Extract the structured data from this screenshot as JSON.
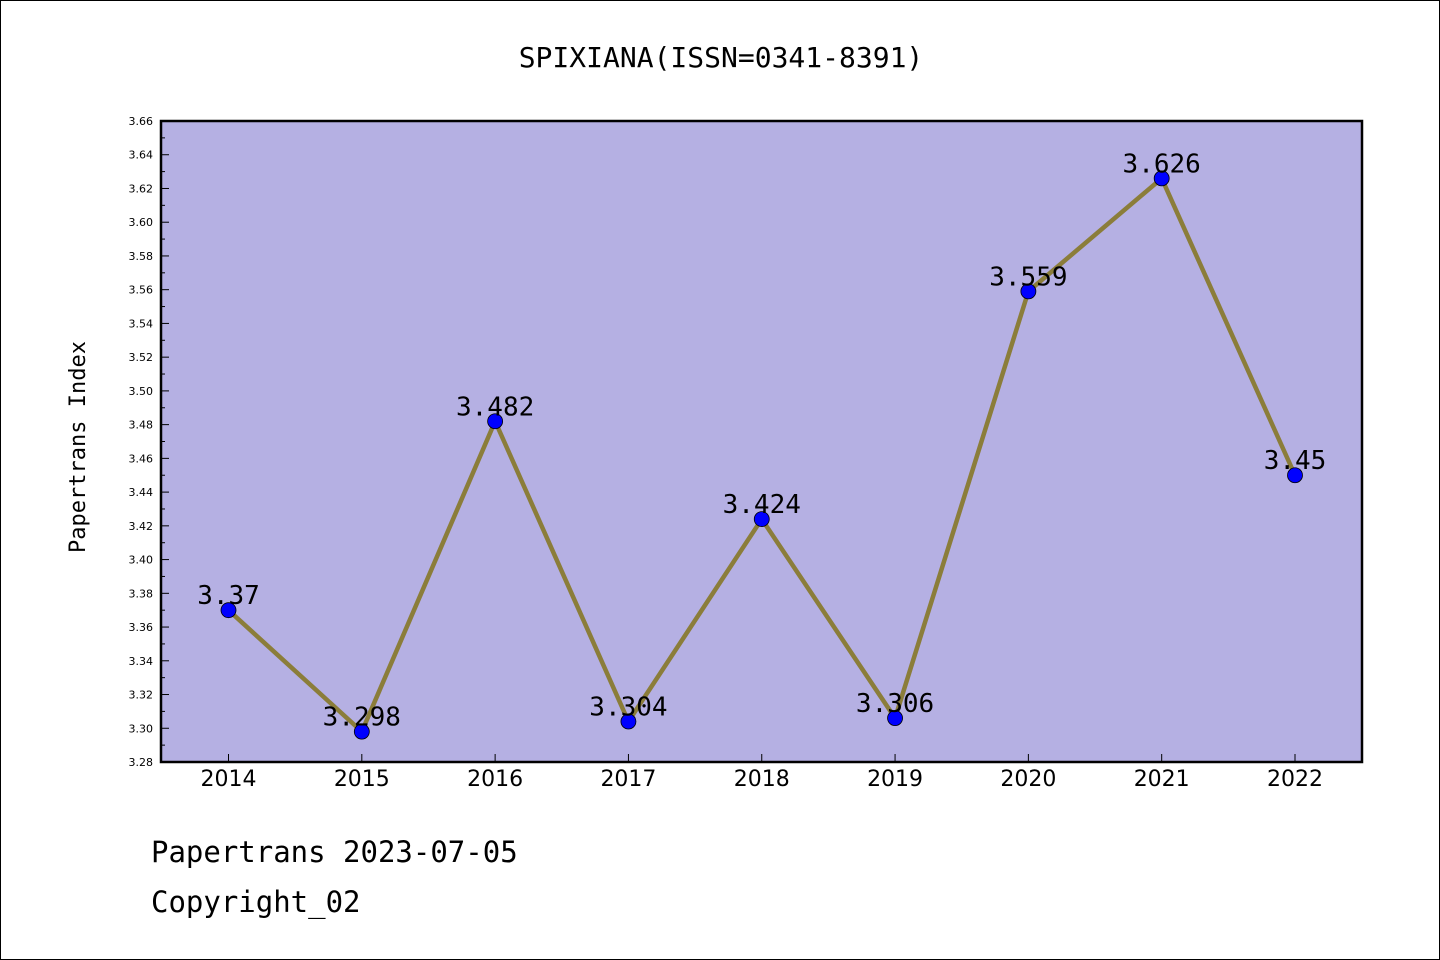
{
  "chart_data": {
    "type": "line",
    "title": "SPIXIANA(ISSN=0341-8391)",
    "xlabel": "",
    "ylabel": "Papertrans Index",
    "categories": [
      "2014",
      "2015",
      "2016",
      "2017",
      "2018",
      "2019",
      "2020",
      "2021",
      "2022"
    ],
    "series": [
      {
        "values": [
          3.37,
          3.298,
          3.482,
          3.304,
          3.424,
          3.306,
          3.559,
          3.626,
          3.45
        ],
        "labels": [
          "3.37",
          "3.298",
          "3.482",
          "3.304",
          "3.424",
          "3.306",
          "3.559",
          "3.626",
          "3.45"
        ],
        "line_color": "#8b7d3a",
        "marker_color": "#0000ff"
      }
    ],
    "ylim": [
      3.28,
      3.66
    ],
    "yticks": [
      "3.28",
      "3.30",
      "3.32",
      "3.34",
      "3.36",
      "3.38",
      "3.40",
      "3.42",
      "3.44",
      "3.46",
      "3.48",
      "3.50",
      "3.52",
      "3.54",
      "3.56",
      "3.58",
      "3.60",
      "3.62",
      "3.64",
      "3.66"
    ],
    "plot_background": "#b5b0e3",
    "grid": false,
    "legend": "none"
  },
  "footer": {
    "line1": "Papertrans 2023-07-05",
    "line2": "Copyright_02"
  }
}
